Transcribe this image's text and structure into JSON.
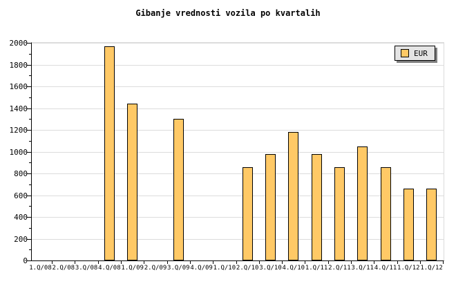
{
  "title": "Gibanje vrednosti vozila po kvartalih",
  "legend": {
    "label": "EUR",
    "swatch_color": "#FFC966",
    "background": "#E4E4E4",
    "shadow_color": "#808080",
    "position": "top-right"
  },
  "colors": {
    "bar_fill": "#FFC966",
    "bar_border": "#000000",
    "grid": "#DCDCDC",
    "axis": "#000000",
    "background": "#FFFFFF"
  },
  "chart_data": {
    "type": "bar",
    "title": "Gibanje vrednosti vozila po kvartalih",
    "categories": [
      "1.Q/08",
      "2.Q/08",
      "3.Q/08",
      "4.Q/08",
      "1.Q/09",
      "2.Q/09",
      "3.Q/09",
      "4.Q/09",
      "1.Q/10",
      "2.Q/10",
      "3.Q/10",
      "4.Q/10",
      "1.Q/11",
      "2.Q/11",
      "3.Q/11",
      "4.Q/11",
      "1.Q/12",
      "1.Q/12"
    ],
    "series": [
      {
        "name": "EUR",
        "values": [
          0,
          0,
          0,
          1970,
          1440,
          0,
          1300,
          0,
          0,
          860,
          980,
          1180,
          980,
          860,
          1050,
          860,
          660,
          660
        ]
      }
    ],
    "xlabel": "",
    "ylabel": "",
    "ylim": [
      0,
      2000
    ],
    "ytick_step": 200,
    "ytick_minor_step": 100,
    "yticks": [
      0,
      200,
      400,
      600,
      800,
      1000,
      1200,
      1400,
      1600,
      1800,
      2000
    ],
    "grid": "horizontal",
    "legend_position": "top-right",
    "bar_color": "#FFC966",
    "note_missing_bars": "no bar drawn for zero values"
  }
}
